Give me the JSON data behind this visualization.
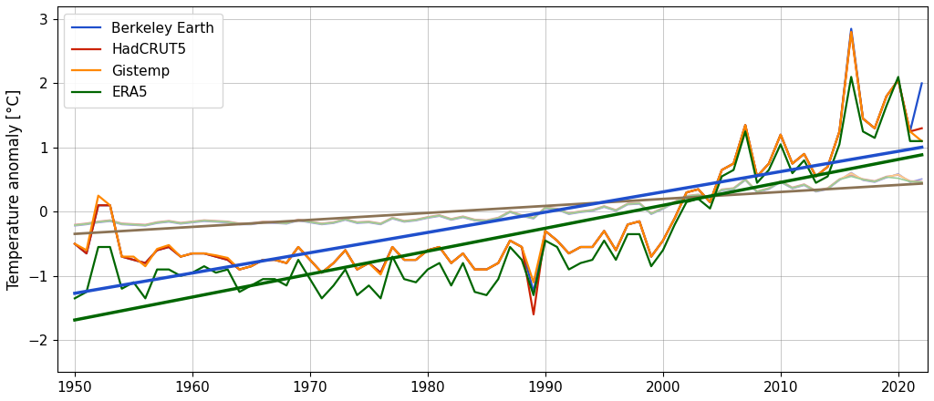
{
  "years": [
    1950,
    1951,
    1952,
    1953,
    1954,
    1955,
    1956,
    1957,
    1958,
    1959,
    1960,
    1961,
    1962,
    1963,
    1964,
    1965,
    1966,
    1967,
    1968,
    1969,
    1970,
    1971,
    1972,
    1973,
    1974,
    1975,
    1976,
    1977,
    1978,
    1979,
    1980,
    1981,
    1982,
    1983,
    1984,
    1985,
    1986,
    1987,
    1988,
    1989,
    1990,
    1991,
    1992,
    1993,
    1994,
    1995,
    1996,
    1997,
    1998,
    1999,
    2000,
    2001,
    2002,
    2003,
    2004,
    2005,
    2006,
    2007,
    2008,
    2009,
    2010,
    2011,
    2012,
    2013,
    2014,
    2015,
    2016,
    2017,
    2018,
    2019,
    2020,
    2021,
    2022
  ],
  "arctic_berkeley": [
    -0.5,
    -0.65,
    0.1,
    0.1,
    -0.7,
    -0.75,
    -0.8,
    -0.6,
    -0.55,
    -0.7,
    -0.65,
    -0.65,
    -0.7,
    -0.75,
    -0.9,
    -0.85,
    -0.75,
    -0.75,
    -0.8,
    -0.55,
    -0.75,
    -0.95,
    -0.8,
    -0.6,
    -0.9,
    -0.8,
    -0.95,
    -0.55,
    -0.75,
    -0.75,
    -0.6,
    -0.55,
    -0.8,
    -0.65,
    -0.9,
    -0.9,
    -0.8,
    -0.45,
    -0.55,
    -1.25,
    -0.3,
    -0.45,
    -0.65,
    -0.55,
    -0.55,
    -0.3,
    -0.6,
    -0.2,
    -0.15,
    -0.7,
    -0.45,
    -0.1,
    0.3,
    0.35,
    0.15,
    0.65,
    0.75,
    1.35,
    0.55,
    0.75,
    1.2,
    0.75,
    0.9,
    0.55,
    0.7,
    1.25,
    2.85,
    1.45,
    1.3,
    1.8,
    2.05,
    1.25,
    2.0
  ],
  "arctic_hadcrut5": [
    -0.5,
    -0.65,
    0.1,
    0.1,
    -0.7,
    -0.75,
    -0.8,
    -0.6,
    -0.55,
    -0.7,
    -0.65,
    -0.65,
    -0.7,
    -0.75,
    -0.9,
    -0.85,
    -0.75,
    -0.75,
    -0.8,
    -0.55,
    -0.75,
    -0.95,
    -0.8,
    -0.6,
    -0.9,
    -0.8,
    -0.95,
    -0.55,
    -0.75,
    -0.75,
    -0.6,
    -0.55,
    -0.8,
    -0.65,
    -0.9,
    -0.9,
    -0.8,
    -0.45,
    -0.55,
    -1.6,
    -0.3,
    -0.45,
    -0.65,
    -0.55,
    -0.55,
    -0.3,
    -0.6,
    -0.2,
    -0.15,
    -0.7,
    -0.45,
    -0.1,
    0.3,
    0.35,
    0.15,
    0.65,
    0.75,
    1.35,
    0.55,
    0.75,
    1.2,
    0.75,
    0.9,
    0.55,
    0.7,
    1.25,
    2.8,
    1.45,
    1.3,
    1.8,
    2.05,
    1.25,
    1.3
  ],
  "arctic_gistemp": [
    -0.5,
    -0.6,
    0.25,
    0.1,
    -0.7,
    -0.7,
    -0.85,
    -0.58,
    -0.52,
    -0.7,
    -0.65,
    -0.65,
    -0.68,
    -0.72,
    -0.9,
    -0.85,
    -0.75,
    -0.75,
    -0.8,
    -0.55,
    -0.75,
    -0.95,
    -0.8,
    -0.6,
    -0.9,
    -0.8,
    -0.98,
    -0.55,
    -0.75,
    -0.75,
    -0.6,
    -0.55,
    -0.8,
    -0.65,
    -0.9,
    -0.9,
    -0.8,
    -0.45,
    -0.55,
    -1.1,
    -0.3,
    -0.45,
    -0.65,
    -0.55,
    -0.55,
    -0.3,
    -0.6,
    -0.2,
    -0.15,
    -0.7,
    -0.45,
    -0.1,
    0.3,
    0.35,
    0.15,
    0.65,
    0.75,
    1.35,
    0.55,
    0.75,
    1.2,
    0.75,
    0.9,
    0.55,
    0.7,
    1.25,
    2.8,
    1.45,
    1.3,
    1.8,
    2.05,
    1.25,
    1.1
  ],
  "arctic_era5": [
    -1.35,
    -1.25,
    -0.55,
    -0.55,
    -1.2,
    -1.1,
    -1.35,
    -0.9,
    -0.9,
    -1.0,
    -0.95,
    -0.85,
    -0.95,
    -0.9,
    -1.25,
    -1.15,
    -1.05,
    -1.05,
    -1.15,
    -0.75,
    -1.05,
    -1.35,
    -1.15,
    -0.9,
    -1.3,
    -1.15,
    -1.35,
    -0.7,
    -1.05,
    -1.1,
    -0.9,
    -0.8,
    -1.15,
    -0.8,
    -1.25,
    -1.3,
    -1.05,
    -0.55,
    -0.75,
    -1.3,
    -0.45,
    -0.55,
    -0.9,
    -0.8,
    -0.75,
    -0.45,
    -0.75,
    -0.35,
    -0.35,
    -0.85,
    -0.6,
    -0.2,
    0.15,
    0.2,
    0.05,
    0.55,
    0.65,
    1.25,
    0.45,
    0.65,
    1.05,
    0.6,
    0.8,
    0.45,
    0.55,
    1.05,
    2.1,
    1.25,
    1.15,
    1.65,
    2.1,
    1.1,
    1.1
  ],
  "global_berkeley": [
    -0.22,
    -0.2,
    -0.17,
    -0.15,
    -0.2,
    -0.21,
    -0.22,
    -0.18,
    -0.16,
    -0.19,
    -0.17,
    -0.15,
    -0.16,
    -0.17,
    -0.2,
    -0.2,
    -0.17,
    -0.18,
    -0.19,
    -0.14,
    -0.17,
    -0.2,
    -0.18,
    -0.13,
    -0.18,
    -0.17,
    -0.2,
    -0.11,
    -0.16,
    -0.14,
    -0.1,
    -0.07,
    -0.13,
    -0.09,
    -0.14,
    -0.15,
    -0.11,
    -0.01,
    -0.07,
    -0.11,
    0.05,
    0.03,
    -0.04,
    -0.01,
    0.01,
    0.07,
    0.01,
    0.11,
    0.12,
    -0.04,
    0.04,
    0.14,
    0.23,
    0.25,
    0.21,
    0.33,
    0.35,
    0.49,
    0.3,
    0.35,
    0.46,
    0.36,
    0.41,
    0.31,
    0.35,
    0.49,
    0.61,
    0.49,
    0.46,
    0.53,
    0.59,
    0.46,
    0.51
  ],
  "global_hadcrut5": [
    -0.2,
    -0.18,
    -0.15,
    -0.13,
    -0.18,
    -0.19,
    -0.2,
    -0.16,
    -0.14,
    -0.17,
    -0.15,
    -0.13,
    -0.14,
    -0.15,
    -0.18,
    -0.18,
    -0.15,
    -0.16,
    -0.17,
    -0.12,
    -0.15,
    -0.18,
    -0.16,
    -0.11,
    -0.16,
    -0.15,
    -0.18,
    -0.09,
    -0.14,
    -0.12,
    -0.08,
    -0.05,
    -0.11,
    -0.07,
    -0.12,
    -0.13,
    -0.09,
    0.01,
    -0.05,
    -0.09,
    0.07,
    0.05,
    -0.02,
    0.01,
    0.03,
    0.09,
    0.03,
    0.13,
    0.14,
    -0.02,
    0.06,
    0.16,
    0.25,
    0.27,
    0.23,
    0.35,
    0.37,
    0.51,
    0.32,
    0.37,
    0.48,
    0.38,
    0.43,
    0.33,
    0.37,
    0.51,
    0.57,
    0.51,
    0.48,
    0.55,
    0.57,
    0.48,
    0.47
  ],
  "global_gistemp": [
    -0.21,
    -0.19,
    -0.16,
    -0.14,
    -0.19,
    -0.2,
    -0.21,
    -0.17,
    -0.15,
    -0.18,
    -0.16,
    -0.14,
    -0.15,
    -0.16,
    -0.19,
    -0.19,
    -0.16,
    -0.17,
    -0.18,
    -0.13,
    -0.16,
    -0.19,
    -0.17,
    -0.12,
    -0.17,
    -0.16,
    -0.19,
    -0.1,
    -0.15,
    -0.13,
    -0.09,
    -0.06,
    -0.12,
    -0.08,
    -0.13,
    -0.14,
    -0.1,
    0.0,
    -0.06,
    -0.1,
    0.06,
    0.04,
    -0.03,
    0.0,
    0.02,
    0.08,
    0.02,
    0.12,
    0.13,
    -0.03,
    0.05,
    0.15,
    0.24,
    0.26,
    0.22,
    0.34,
    0.36,
    0.5,
    0.31,
    0.36,
    0.47,
    0.37,
    0.42,
    0.32,
    0.36,
    0.5,
    0.6,
    0.5,
    0.47,
    0.54,
    0.58,
    0.47,
    0.46
  ],
  "global_era5": [
    -0.21,
    -0.19,
    -0.16,
    -0.14,
    -0.19,
    -0.2,
    -0.21,
    -0.17,
    -0.15,
    -0.18,
    -0.16,
    -0.14,
    -0.15,
    -0.16,
    -0.19,
    -0.19,
    -0.16,
    -0.17,
    -0.18,
    -0.13,
    -0.16,
    -0.19,
    -0.17,
    -0.12,
    -0.17,
    -0.16,
    -0.19,
    -0.1,
    -0.15,
    -0.13,
    -0.09,
    -0.06,
    -0.12,
    -0.08,
    -0.13,
    -0.14,
    -0.1,
    0.0,
    -0.06,
    -0.1,
    0.06,
    0.04,
    -0.03,
    0.0,
    0.02,
    0.08,
    0.02,
    0.12,
    0.13,
    -0.03,
    0.05,
    0.15,
    0.24,
    0.26,
    0.22,
    0.34,
    0.36,
    0.5,
    0.31,
    0.36,
    0.47,
    0.37,
    0.42,
    0.32,
    0.36,
    0.5,
    0.55,
    0.5,
    0.47,
    0.54,
    0.52,
    0.47,
    0.46
  ],
  "colors_arctic": [
    "#1f4fcc",
    "#cc2200",
    "#ff8800",
    "#006600"
  ],
  "colors_global": [
    "#9999dd",
    "#dd9999",
    "#ffcc88",
    "#99cc99"
  ],
  "labels": [
    "Berkeley Earth",
    "HadCRUT5",
    "Gistemp",
    "ERA5"
  ],
  "ylabel": "Temperature anomaly [°C]",
  "ylim": [
    -2.5,
    3.2
  ],
  "xlim": [
    1948.5,
    2022.5
  ],
  "yticks": [
    -2,
    -1,
    0,
    1,
    2,
    3
  ],
  "xticks": [
    1950,
    1960,
    1970,
    1980,
    1990,
    2000,
    2010,
    2020
  ],
  "trend_color_arctic": "#1f4fcc",
  "trend_color_era5": "#006600",
  "trend_color_global": "#8B7355",
  "linewidth_arctic": 1.6,
  "linewidth_global": 1.2,
  "linewidth_trend": 2.5
}
